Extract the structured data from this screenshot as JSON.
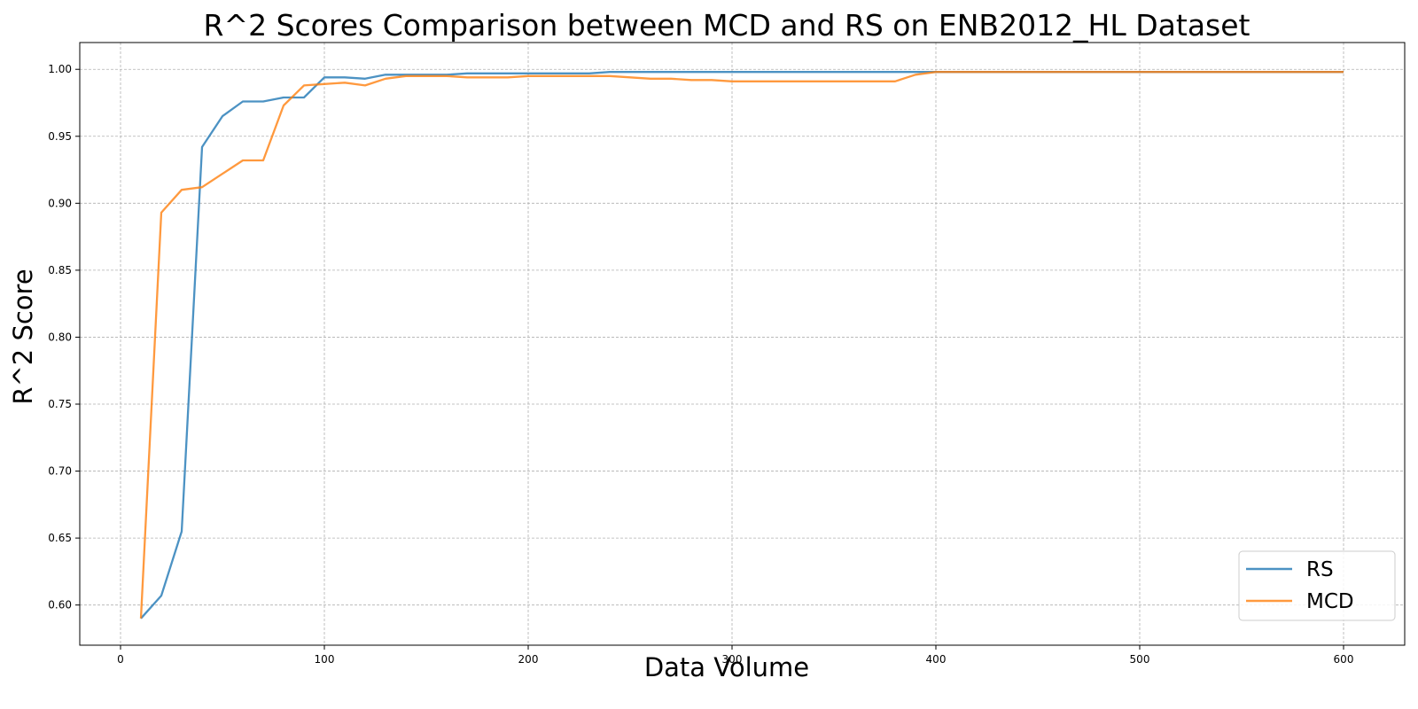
{
  "chart_data": {
    "type": "line",
    "title": "R^2 Scores Comparison between MCD and RS on ENB2012_HL Dataset",
    "xlabel": "Data Volume",
    "ylabel": "R^2 Score",
    "xlim": [
      -20,
      630
    ],
    "ylim": [
      0.57,
      1.02
    ],
    "xticks": [
      0,
      100,
      200,
      300,
      400,
      500,
      600
    ],
    "yticks": [
      0.6,
      0.65,
      0.7,
      0.75,
      0.8,
      0.85,
      0.9,
      0.95,
      1.0
    ],
    "grid": true,
    "legend_position": "lower-right",
    "x": [
      10,
      20,
      30,
      40,
      50,
      60,
      70,
      80,
      90,
      100,
      110,
      120,
      130,
      140,
      150,
      160,
      170,
      180,
      190,
      200,
      210,
      220,
      230,
      240,
      250,
      260,
      270,
      280,
      290,
      300,
      310,
      320,
      330,
      340,
      350,
      360,
      370,
      380,
      390,
      400,
      410,
      420,
      430,
      440,
      450,
      460,
      470,
      480,
      490,
      500,
      510,
      520,
      530,
      540,
      550,
      560,
      570,
      580,
      590,
      600
    ],
    "series": [
      {
        "name": "RS",
        "color": "#1f77b4",
        "values": [
          0.59,
          0.607,
          0.655,
          0.942,
          0.965,
          0.976,
          0.976,
          0.979,
          0.979,
          0.994,
          0.994,
          0.993,
          0.996,
          0.996,
          0.996,
          0.996,
          0.997,
          0.997,
          0.997,
          0.997,
          0.997,
          0.997,
          0.997,
          0.998,
          0.998,
          0.998,
          0.998,
          0.998,
          0.998,
          0.998,
          0.998,
          0.998,
          0.998,
          0.998,
          0.998,
          0.998,
          0.998,
          0.998,
          0.998,
          0.998,
          0.998,
          0.998,
          0.998,
          0.998,
          0.998,
          0.998,
          0.998,
          0.998,
          0.998,
          0.998,
          0.998,
          0.998,
          0.998,
          0.998,
          0.998,
          0.998,
          0.998,
          0.998,
          0.998,
          0.998
        ]
      },
      {
        "name": "MCD",
        "color": "#ff7f0e",
        "values": [
          0.59,
          0.893,
          0.91,
          0.912,
          0.922,
          0.932,
          0.932,
          0.973,
          0.988,
          0.989,
          0.99,
          0.988,
          0.993,
          0.995,
          0.995,
          0.995,
          0.994,
          0.994,
          0.994,
          0.995,
          0.995,
          0.995,
          0.995,
          0.995,
          0.994,
          0.993,
          0.993,
          0.992,
          0.992,
          0.991,
          0.991,
          0.991,
          0.991,
          0.991,
          0.991,
          0.991,
          0.991,
          0.991,
          0.996,
          0.998,
          0.998,
          0.998,
          0.998,
          0.998,
          0.998,
          0.998,
          0.998,
          0.998,
          0.998,
          0.998,
          0.998,
          0.998,
          0.998,
          0.998,
          0.998,
          0.998,
          0.998,
          0.998,
          0.998,
          0.998
        ]
      }
    ]
  }
}
